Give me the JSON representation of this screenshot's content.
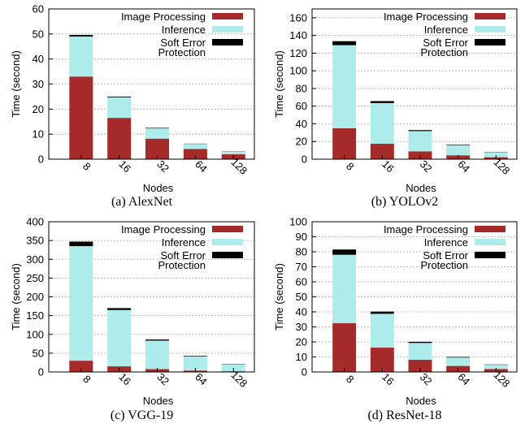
{
  "chart_data": [
    {
      "type": "bar",
      "caption": "(a)  AlexNet",
      "xlabel": "Nodes",
      "ylabel": "Time (second)",
      "categories": [
        "8",
        "16",
        "32",
        "64",
        "128"
      ],
      "ylim": [
        0,
        60
      ],
      "yticks": [
        0,
        10,
        20,
        30,
        40,
        50,
        60
      ],
      "stacked": true,
      "grid": true,
      "legend_position": "top-right",
      "series": [
        {
          "name": "Image Processing",
          "values": [
            33,
            16.5,
            8.2,
            4.1,
            2.0
          ]
        },
        {
          "name": "Inference",
          "values": [
            16.0,
            8.2,
            4.1,
            2.0,
            1.0
          ]
        },
        {
          "name": "Soft Error Protection",
          "values": [
            0.6,
            0.3,
            0.2,
            0.1,
            0.1
          ]
        }
      ]
    },
    {
      "type": "bar",
      "caption": "(b)  YOLOv2",
      "xlabel": "Nodes",
      "ylabel": "Time (second)",
      "categories": [
        "8",
        "16",
        "32",
        "64",
        "128"
      ],
      "ylim": [
        0,
        170
      ],
      "yticks": [
        0,
        20,
        40,
        60,
        80,
        100,
        120,
        140,
        160
      ],
      "stacked": true,
      "grid": true,
      "legend_position": "top-right",
      "series": [
        {
          "name": "Image Processing",
          "values": [
            35,
            17.5,
            8.8,
            4.4,
            2.2
          ]
        },
        {
          "name": "Inference",
          "values": [
            94,
            46,
            23,
            11.5,
            5.8
          ]
        },
        {
          "name": "Soft Error Protection",
          "values": [
            4.5,
            2.2,
            1.1,
            0.6,
            0.3
          ]
        }
      ]
    },
    {
      "type": "bar",
      "caption": "(c)  VGG-19",
      "xlabel": "Nodes",
      "ylabel": "Time (second)",
      "categories": [
        "8",
        "16",
        "32",
        "64",
        "128"
      ],
      "ylim": [
        0,
        400
      ],
      "yticks": [
        0,
        50,
        100,
        150,
        200,
        250,
        300,
        350,
        400
      ],
      "stacked": true,
      "grid": true,
      "legend_position": "top-right",
      "series": [
        {
          "name": "Image Processing",
          "values": [
            30,
            15,
            7.5,
            3.8,
            1.9
          ]
        },
        {
          "name": "Inference",
          "values": [
            305,
            150,
            76,
            38,
            19
          ]
        },
        {
          "name": "Soft Error Protection",
          "values": [
            12,
            5,
            3,
            1.5,
            0.8
          ]
        }
      ]
    },
    {
      "type": "bar",
      "caption": "(d)  ResNet-18",
      "xlabel": "Nodes",
      "ylabel": "Time (second)",
      "categories": [
        "8",
        "16",
        "32",
        "64",
        "128"
      ],
      "ylim": [
        0,
        100
      ],
      "yticks": [
        0,
        10,
        20,
        30,
        40,
        50,
        60,
        70,
        80,
        90,
        100
      ],
      "stacked": true,
      "grid": true,
      "legend_position": "top-right",
      "series": [
        {
          "name": "Image Processing",
          "values": [
            32.5,
            16.2,
            8.1,
            4.0,
            2.0
          ]
        },
        {
          "name": "Inference",
          "values": [
            45.5,
            22.5,
            11.2,
            5.6,
            2.8
          ]
        },
        {
          "name": "Soft Error Protection",
          "values": [
            3.5,
            1.5,
            0.8,
            0.4,
            0.2
          ]
        }
      ]
    }
  ],
  "legend": {
    "image_processing": "Image Processing",
    "inference": "Inference",
    "soft_error_line1": "Soft Error",
    "soft_error_line2": "Protection"
  },
  "colors": {
    "image_processing": "#a52a2a",
    "inference": "#aeebeb",
    "soft_error": "#000000",
    "grid": "#aaaaaa"
  }
}
